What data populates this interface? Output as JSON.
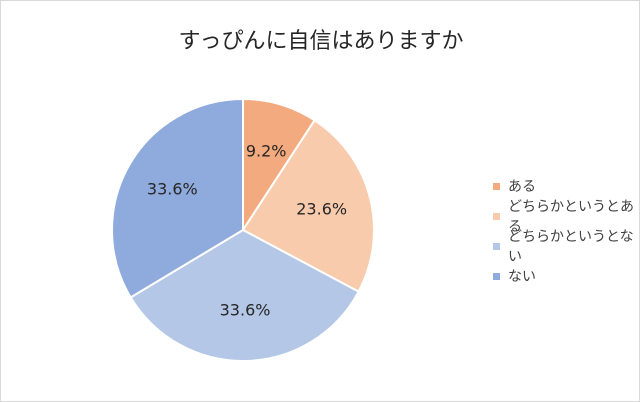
{
  "chart_data": {
    "type": "pie",
    "title": "すっぴんに自信はありますか",
    "categories": [
      "ある",
      "どちらかというとある",
      "どちらかというとない",
      "ない"
    ],
    "values": [
      9.2,
      23.6,
      33.6,
      33.6
    ],
    "data_labels": [
      "9.2%",
      "23.6%",
      "33.6%",
      "33.6%"
    ],
    "colors": [
      "#f2aa7e",
      "#f7cbac",
      "#b4c7e7",
      "#8faadc"
    ],
    "legend_position": "right",
    "start_angle": "12 o'clock, clockwise"
  }
}
